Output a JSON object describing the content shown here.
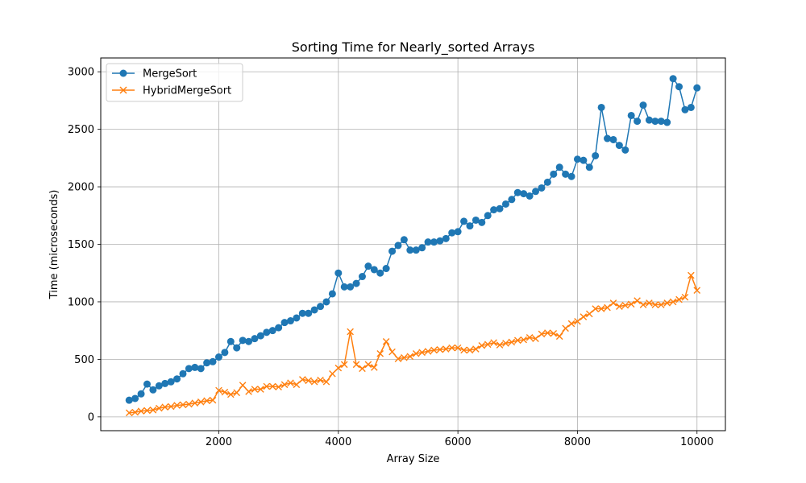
{
  "chart_data": {
    "type": "line",
    "title": "Sorting Time for Nearly_sorted Arrays",
    "xlabel": "Array Size",
    "ylabel": "Time (microseconds)",
    "xlim": [
      0,
      10500
    ],
    "ylim": [
      -120,
      3120
    ],
    "xticks": [
      2000,
      4000,
      6000,
      8000,
      10000
    ],
    "yticks": [
      0,
      500,
      1000,
      1500,
      2000,
      2500,
      3000
    ],
    "grid": true,
    "legend_position": "upper-left",
    "x": [
      500,
      600,
      700,
      800,
      900,
      1000,
      1100,
      1200,
      1300,
      1400,
      1500,
      1600,
      1700,
      1800,
      1900,
      2000,
      2100,
      2200,
      2300,
      2400,
      2500,
      2600,
      2700,
      2800,
      2900,
      3000,
      3100,
      3200,
      3300,
      3400,
      3500,
      3600,
      3700,
      3800,
      3900,
      4000,
      4100,
      4200,
      4300,
      4400,
      4500,
      4600,
      4700,
      4800,
      4900,
      5000,
      5100,
      5200,
      5300,
      5400,
      5500,
      5600,
      5700,
      5800,
      5900,
      6000,
      6100,
      6200,
      6300,
      6400,
      6500,
      6600,
      6700,
      6800,
      6900,
      7000,
      7100,
      7200,
      7300,
      7400,
      7500,
      7600,
      7700,
      7800,
      7900,
      8000,
      8100,
      8200,
      8300,
      8400,
      8500,
      8600,
      8700,
      8800,
      8900,
      9000,
      9100,
      9200,
      9300,
      9400,
      9500,
      9600,
      9700,
      9800,
      9900,
      10000
    ],
    "series": [
      {
        "name": "MergeSort",
        "color": "#1f77b4",
        "marker": "circle",
        "values": [
          145,
          160,
          200,
          285,
          235,
          270,
          290,
          305,
          330,
          375,
          420,
          430,
          420,
          470,
          480,
          520,
          560,
          655,
          600,
          665,
          655,
          680,
          705,
          735,
          750,
          775,
          820,
          835,
          860,
          900,
          900,
          930,
          960,
          1000,
          1070,
          1250,
          1130,
          1130,
          1160,
          1220,
          1310,
          1280,
          1250,
          1290,
          1440,
          1490,
          1540,
          1450,
          1450,
          1470,
          1520,
          1520,
          1530,
          1550,
          1600,
          1610,
          1700,
          1660,
          1710,
          1690,
          1750,
          1800,
          1810,
          1850,
          1890,
          1950,
          1940,
          1920,
          1960,
          1990,
          2040,
          2110,
          2170,
          2110,
          2090,
          2240,
          2230,
          2170,
          2270,
          2690,
          2420,
          2410,
          2360,
          2320,
          2620,
          2570,
          2710,
          2580,
          2570,
          2570,
          2560,
          2940,
          2870,
          2670,
          2690,
          2860
        ]
      },
      {
        "name": "HybridMergeSort",
        "color": "#ff7f0e",
        "marker": "x",
        "values": [
          35,
          40,
          50,
          55,
          60,
          75,
          85,
          90,
          100,
          105,
          110,
          120,
          130,
          140,
          145,
          230,
          215,
          195,
          210,
          275,
          220,
          240,
          240,
          265,
          265,
          260,
          280,
          295,
          280,
          325,
          315,
          305,
          320,
          305,
          375,
          425,
          455,
          740,
          455,
          420,
          455,
          430,
          550,
          655,
          565,
          505,
          515,
          525,
          550,
          560,
          570,
          580,
          585,
          590,
          600,
          600,
          580,
          580,
          590,
          620,
          630,
          645,
          625,
          640,
          650,
          665,
          670,
          690,
          680,
          720,
          730,
          725,
          700,
          770,
          810,
          830,
          870,
          895,
          940,
          940,
          950,
          990,
          960,
          970,
          980,
          1010,
          975,
          990,
          975,
          975,
          990,
          1000,
          1020,
          1040,
          1230,
          1100
        ]
      }
    ]
  }
}
